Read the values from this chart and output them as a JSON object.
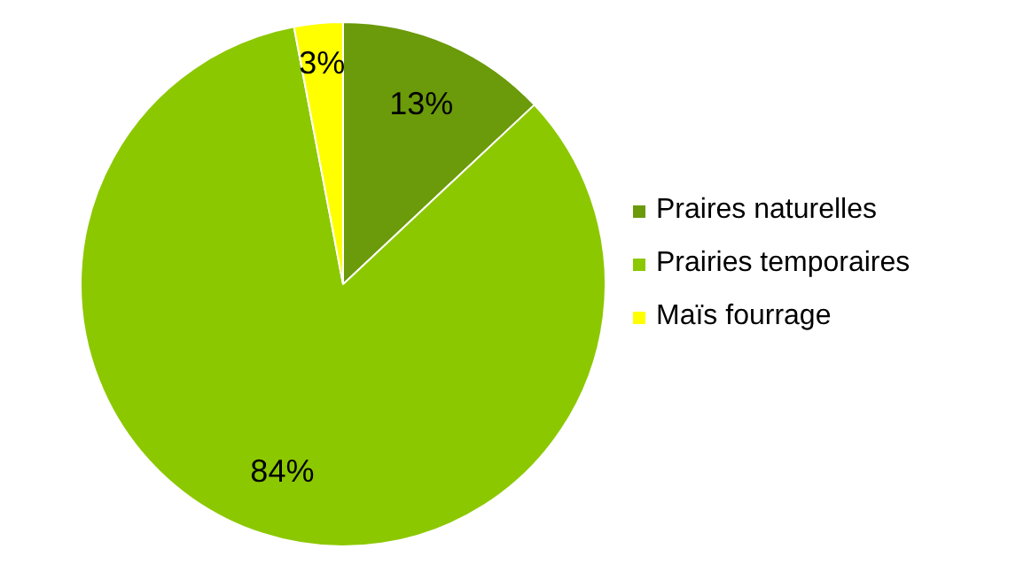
{
  "chart_data": {
    "type": "pie",
    "categories": [
      "Praires naturelles",
      "Prairies temporaires",
      "Maïs fourrage"
    ],
    "values": [
      13,
      84,
      3
    ],
    "colors": [
      "#6b9a0a",
      "#8cc800",
      "#ffff00"
    ],
    "value_labels": [
      "13%",
      "84%",
      "3%"
    ],
    "legend": "right"
  }
}
